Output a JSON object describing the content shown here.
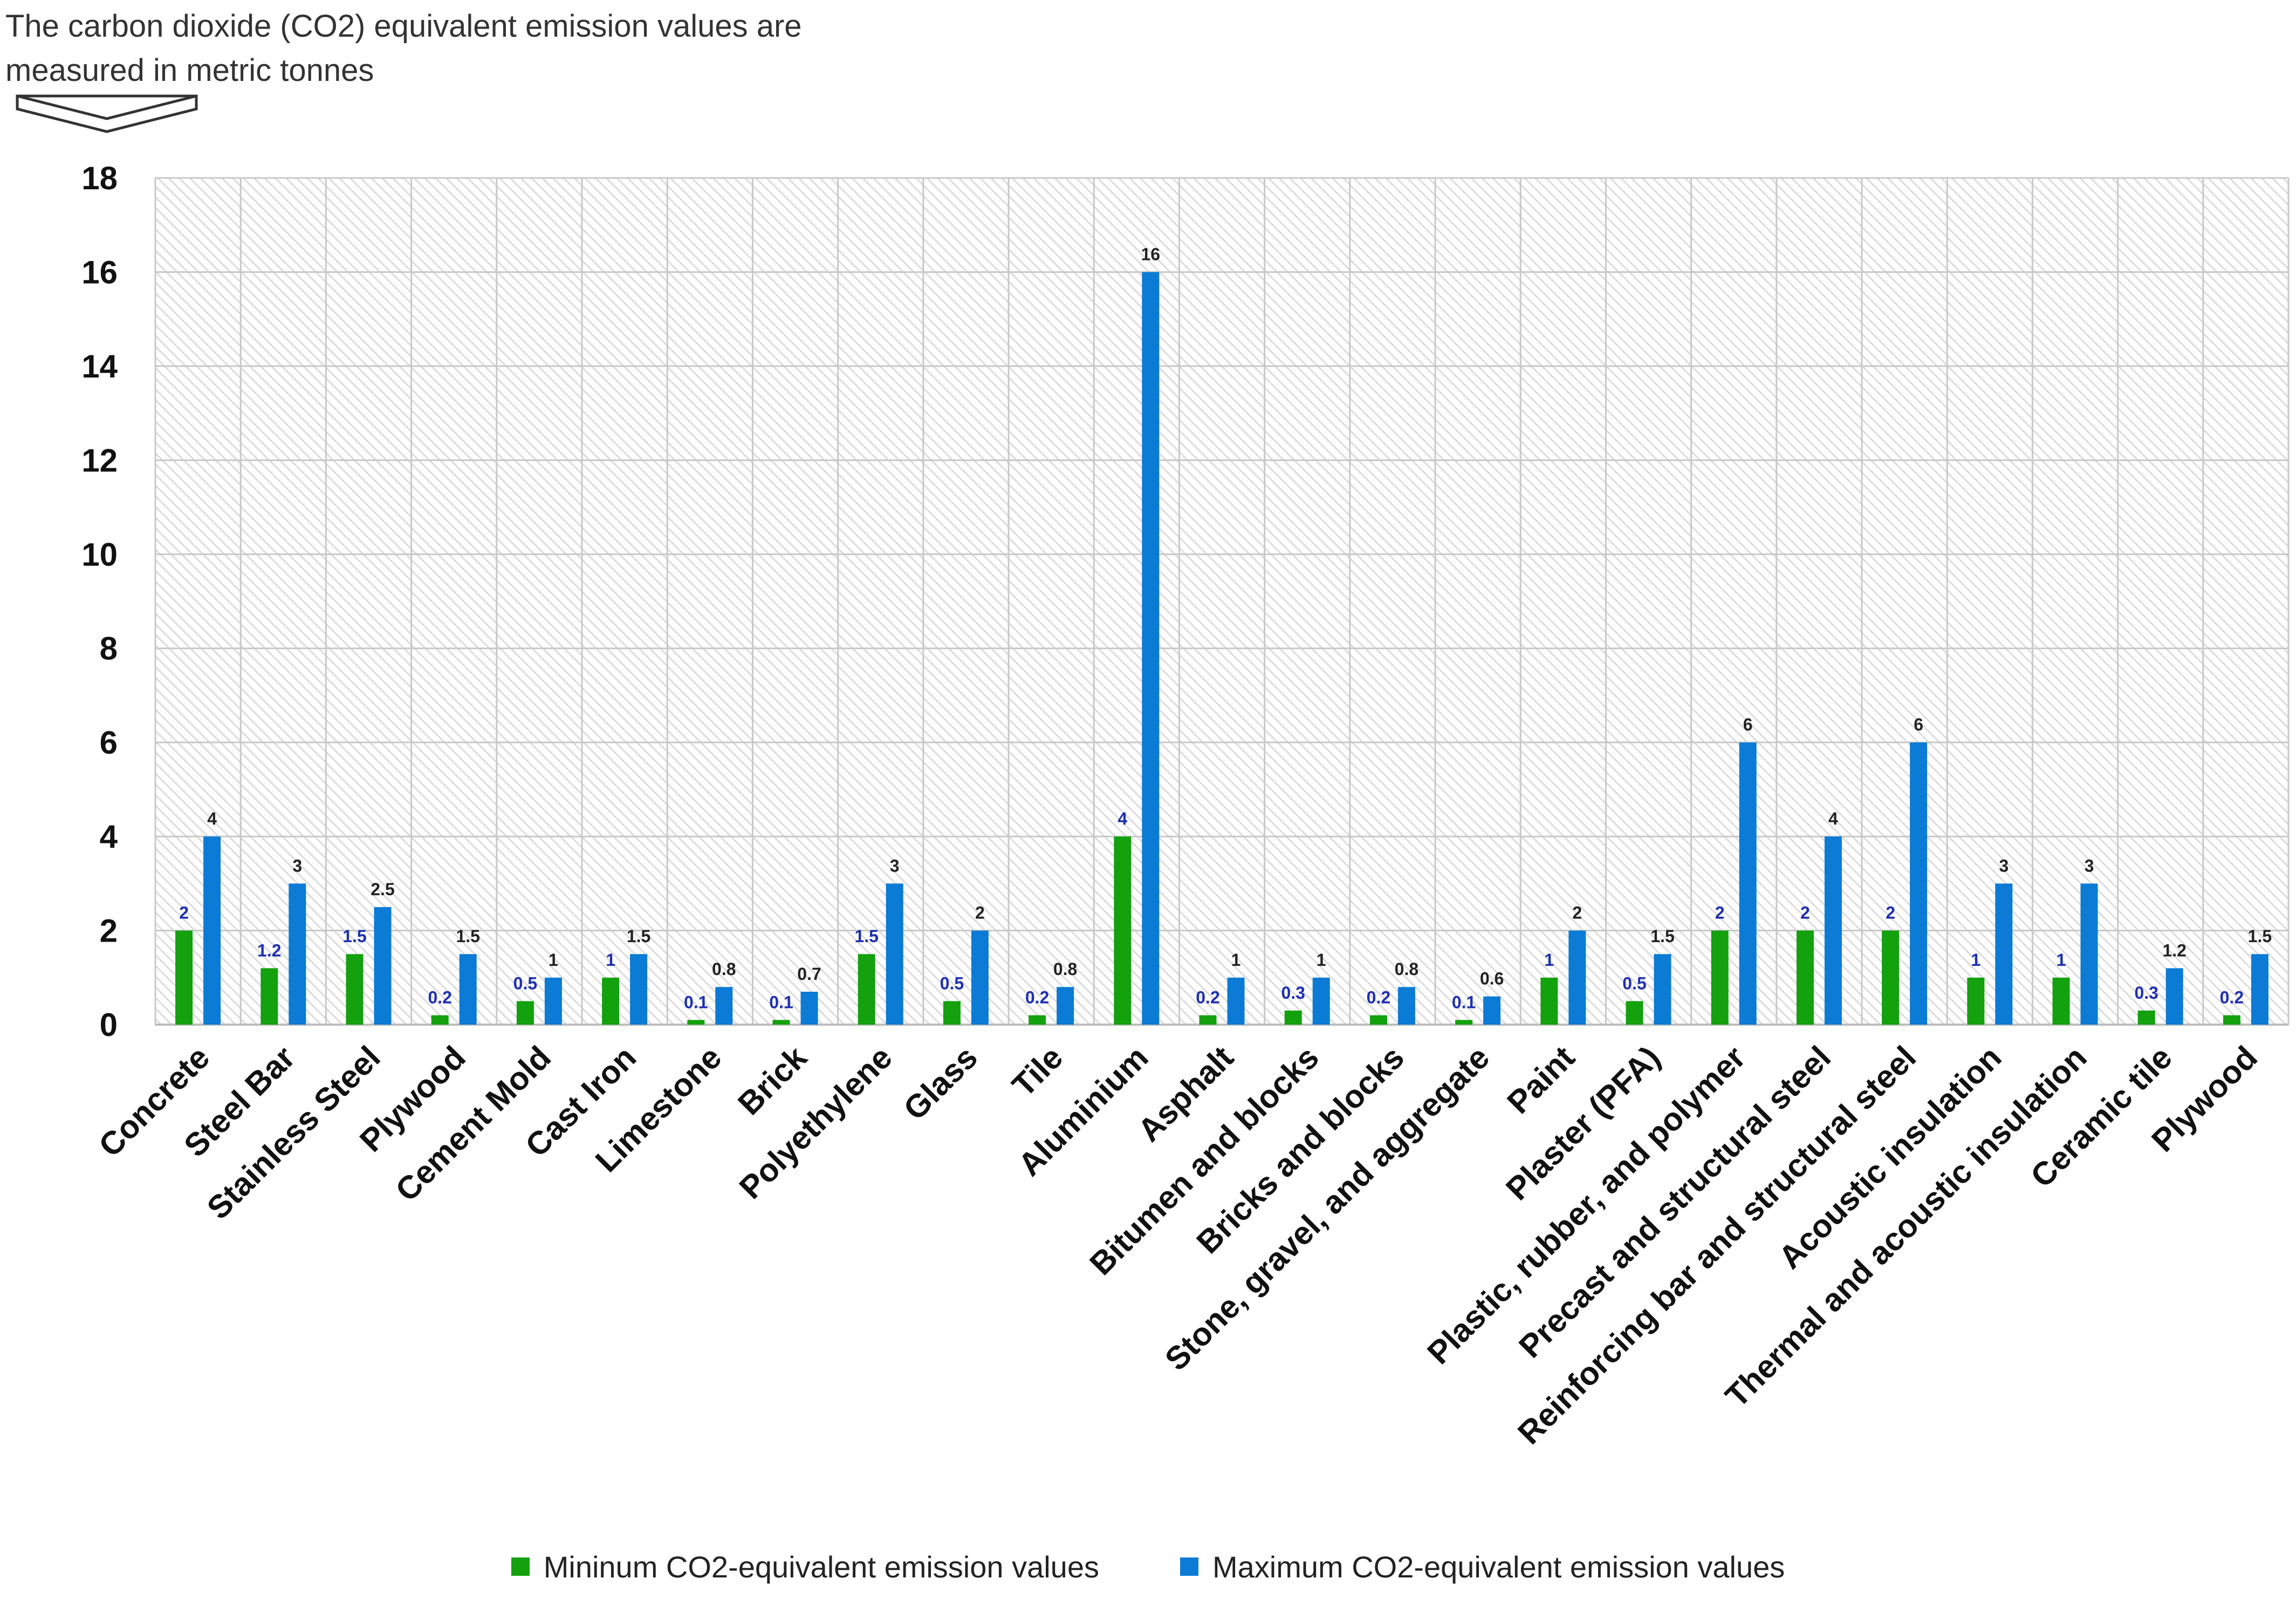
{
  "note": {
    "line1": "The carbon dioxide (CO2) equivalent emission values are",
    "line2": "measured in metric tonnes"
  },
  "colors": {
    "min": "#13a10e",
    "max": "#0b7bd6",
    "min_label": "#1e2fb0",
    "max_label": "#222222"
  },
  "chart_data": {
    "type": "bar",
    "title": "",
    "xlabel": "",
    "ylabel": "",
    "ylim": [
      0,
      18
    ],
    "yticks": [
      0,
      2,
      4,
      6,
      8,
      10,
      12,
      14,
      16,
      18
    ],
    "grid": true,
    "legend_position": "bottom",
    "categories": [
      "Concrete",
      "Steel Bar",
      "Stainless Steel",
      "Plywood",
      "Cement Mold",
      "Cast Iron",
      "Limestone",
      "Brick",
      "Polyethylene",
      "Glass",
      "Tile",
      "Aluminium",
      "Asphalt",
      "Bitumen and blocks",
      "Bricks and blocks",
      "Stone, gravel, and aggregate",
      "Paint",
      "Plaster (PFA)",
      "Plastic, rubber, and polymer",
      "Precast and structural steel",
      "Reinforcing bar and structural steel",
      "Acoustic insulation",
      "Thermal and acoustic insulation",
      "Ceramic tile",
      "Plywood"
    ],
    "series": [
      {
        "name": "Mininum CO2-equivalent emission values",
        "values": [
          2,
          1.2,
          1.5,
          0.2,
          0.5,
          1,
          0.1,
          0.1,
          1.5,
          0.5,
          0.2,
          4,
          0.2,
          0.3,
          0.2,
          0.1,
          1,
          0.5,
          2,
          2,
          2,
          1,
          1,
          0.3,
          0.2
        ]
      },
      {
        "name": "Maximum CO2-equivalent emission values",
        "values": [
          4,
          3,
          2.5,
          1.5,
          1,
          1.5,
          0.8,
          0.7,
          3,
          2,
          0.8,
          16,
          1,
          1,
          0.8,
          0.6,
          2,
          1.5,
          6,
          4,
          6,
          3,
          3,
          1.2,
          1.5
        ]
      }
    ],
    "min_data_labels": [
      "2",
      "1.2",
      "1.5",
      "0.2",
      "0.5",
      "1",
      "0.1",
      "0.1",
      "1.5",
      "0.5",
      "0.2",
      "4",
      "0.2",
      "0.3",
      "0.2",
      "0.1",
      "1",
      "0.5",
      "2",
      "2",
      "2",
      "1",
      "1",
      "0.3",
      "0.2"
    ],
    "max_data_labels": [
      "4",
      "3",
      "2.5",
      "1.5",
      "1",
      "1.5",
      "0.8",
      "0.7",
      "3",
      "2",
      "0.8",
      "16",
      "1",
      "1",
      "0.8",
      "0.6",
      "2",
      "1.5",
      "6",
      "4",
      "6",
      "3",
      "3",
      "1.2",
      "1.5"
    ]
  }
}
